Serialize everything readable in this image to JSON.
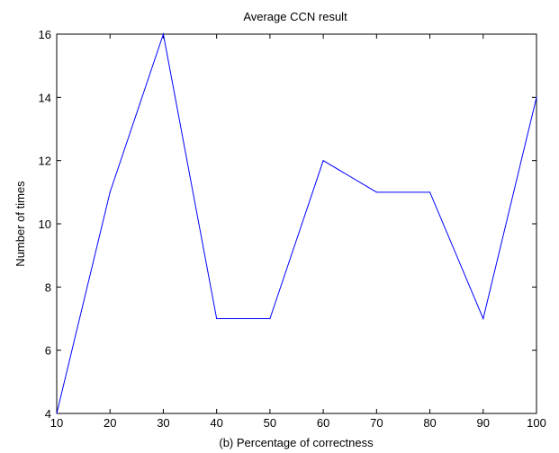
{
  "chart_data": {
    "type": "line",
    "title": "Average CCN result",
    "xlabel": "(b) Percentage of correctness",
    "ylabel": "Number of times",
    "x": [
      10,
      20,
      30,
      40,
      50,
      60,
      70,
      80,
      90,
      100
    ],
    "series": [
      {
        "values": [
          4,
          11,
          16,
          7,
          7,
          12,
          11,
          11,
          7,
          14
        ],
        "color": "#0000ff"
      }
    ],
    "xlim": [
      10,
      100
    ],
    "ylim": [
      4,
      16
    ],
    "xticks": [
      10,
      20,
      30,
      40,
      50,
      60,
      70,
      80,
      90,
      100
    ],
    "yticks": [
      4,
      6,
      8,
      10,
      12,
      14,
      16
    ],
    "grid": false,
    "legend": "none"
  }
}
